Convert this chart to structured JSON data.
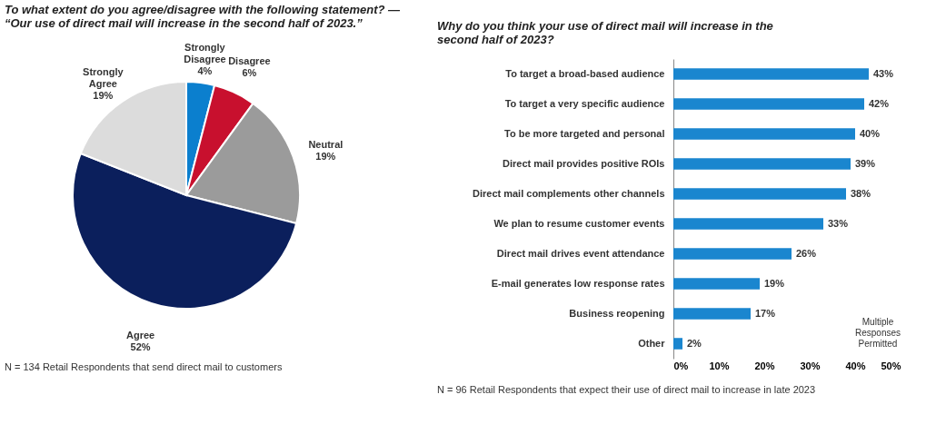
{
  "chart_data": [
    {
      "type": "pie",
      "title": "To what extent do you agree/disagree with the following statement? — “Our use of direct mail will increase in the second half of 2023.”",
      "categories": [
        "Strongly Disagree",
        "Disagree",
        "Neutral",
        "Agree",
        "Strongly Agree"
      ],
      "values": [
        4,
        6,
        19,
        52,
        19
      ],
      "value_labels": [
        "4%",
        "6%",
        "19%",
        "52%",
        "19%"
      ],
      "colors": [
        "#0b7fce",
        "#c8102e",
        "#9b9b9b",
        "#0b1f5c",
        "#dcdcdc"
      ],
      "legend": false,
      "annotations": [
        "N = 134 Retail Respondents that send direct mail to customers"
      ]
    },
    {
      "type": "bar",
      "orientation": "horizontal",
      "title": "Why do you think your use of direct mail will increase in the second half of 2023?",
      "categories": [
        "To target a broad-based audience",
        "To target a very specific audience",
        "To be more targeted and personal",
        "Direct mail provides positive ROIs",
        "Direct mail complements other channels",
        "We plan to resume customer events",
        "Direct mail drives event attendance",
        "E-mail generates low response rates",
        "Business reopening",
        "Other"
      ],
      "values": [
        43,
        42,
        40,
        39,
        38,
        33,
        26,
        19,
        17,
        2
      ],
      "value_labels": [
        "43%",
        "42%",
        "40%",
        "39%",
        "38%",
        "33%",
        "26%",
        "19%",
        "17%",
        "2%"
      ],
      "color": "#1a86cf",
      "xlim": [
        0,
        50
      ],
      "xticks": [
        {
          "value": 0,
          "label": "0%"
        },
        {
          "value": 10,
          "label": "10%"
        },
        {
          "value": 20,
          "label": "20%"
        },
        {
          "value": 30,
          "label": "30%"
        },
        {
          "value": 40,
          "label": "40%"
        },
        {
          "value": 50,
          "label": "50%"
        }
      ],
      "grid": false,
      "annotations": [
        "Multiple Responses Permitted",
        "N = 96 Retail Respondents that expect their use of direct mail to increase in late 2023"
      ]
    }
  ]
}
